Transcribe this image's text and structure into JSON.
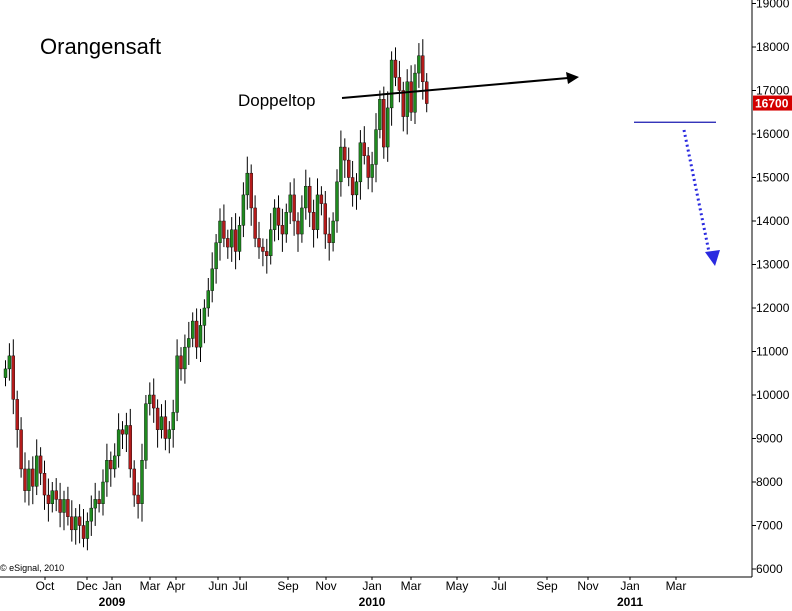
{
  "chart_data": {
    "type": "candlestick",
    "title": "Orangensaft",
    "xlabel": "",
    "ylabel": "",
    "ylim": [
      6000,
      19000
    ],
    "y_ticks": [
      6000,
      7000,
      8000,
      9000,
      10000,
      11000,
      12000,
      13000,
      14000,
      15000,
      16000,
      17000,
      18000,
      19000
    ],
    "y_axis_side": "right",
    "x_labels": [
      "Oct",
      "Dec",
      "Jan",
      "Mar",
      "Apr",
      "Jun",
      "Jul",
      "Sep",
      "Nov",
      "Jan",
      "Mar",
      "May",
      "Jul",
      "Sep",
      "Nov",
      "Jan",
      "Mar"
    ],
    "years": [
      "2009",
      "2010",
      "2011"
    ],
    "last_price": "16700",
    "annotation": "Doppeltop",
    "credit": "© eSignal, 2010",
    "grid": false,
    "colors": {
      "up": "#1f8a1f",
      "down": "#b31b1b",
      "last_price_bg": "#d40000",
      "support_line": "#1a1ab0",
      "projection_arrow": "#2a2ae0"
    },
    "candles_close": [
      10600,
      10900,
      9900,
      9200,
      8300,
      7800,
      8300,
      7900,
      8600,
      8200,
      7700,
      7500,
      7800,
      7600,
      7300,
      7600,
      7200,
      6900,
      7200,
      7000,
      6700,
      7100,
      7400,
      7600,
      7500,
      8000,
      8500,
      8300,
      8600,
      9200,
      9100,
      9300,
      8300,
      7700,
      7500,
      8500,
      9800,
      10000,
      9700,
      9200,
      9500,
      9000,
      9200,
      9600,
      10900,
      10600,
      11100,
      11300,
      11700,
      11100,
      11600,
      12000,
      12400,
      12900,
      13500,
      14000,
      13600,
      13400,
      13800,
      13300,
      13900,
      14600,
      15100,
      14300,
      13600,
      13400,
      13300,
      13200,
      13800,
      14300,
      13900,
      13700,
      14200,
      14600,
      14000,
      13700,
      14300,
      14800,
      14200,
      13800,
      14600,
      14400,
      13700,
      13500,
      14000,
      14900,
      15700,
      15400,
      15000,
      14600,
      14900,
      15800,
      15500,
      15000,
      15300,
      16100,
      16800,
      15700,
      16600,
      17700,
      17300,
      17000,
      16400,
      17200,
      16500,
      17400,
      17800,
      17200,
      16700
    ],
    "series": [
      {
        "name": "",
        "type": "line",
        "values": [
          16270,
          16270
        ]
      }
    ]
  }
}
